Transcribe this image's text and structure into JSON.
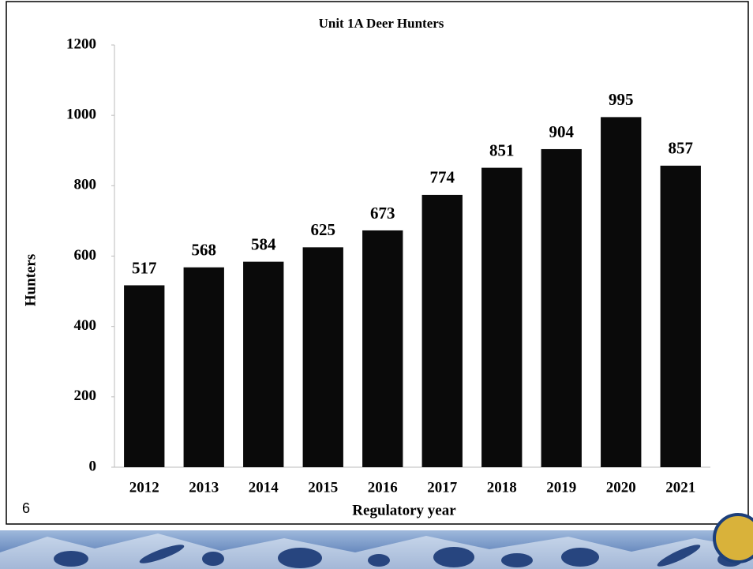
{
  "chart_data": {
    "type": "bar",
    "title": "Unit 1A Deer Hunters",
    "x_label": "Regulatory year",
    "y_label": "Hunters",
    "categories": [
      "2012",
      "2013",
      "2014",
      "2015",
      "2016",
      "2017",
      "2018",
      "2019",
      "2020",
      "2021"
    ],
    "values": [
      517,
      568,
      584,
      625,
      673,
      774,
      851,
      904,
      995,
      857
    ],
    "color": "#0a0a0a",
    "ylim": [
      0,
      1200
    ],
    "yticks": [
      0,
      200,
      400,
      600,
      800,
      1000,
      1200
    ],
    "grid": false
  },
  "footer": {
    "slide_number": "6"
  }
}
